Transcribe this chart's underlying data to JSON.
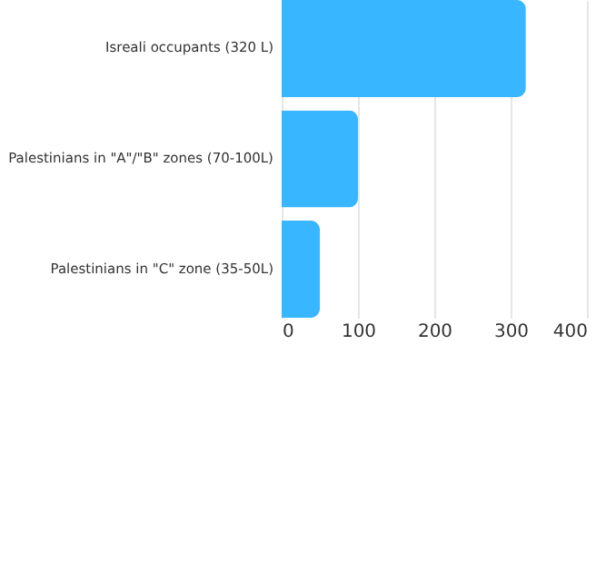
{
  "chart_data": {
    "type": "bar",
    "orientation": "horizontal",
    "categories": [
      "Isreali occupants (320 L)",
      "Palestinians in \"A\"/\"B\" zones (70-100L)",
      "Palestinians in \"C\" zone (35-50L)"
    ],
    "values": [
      320,
      100,
      50
    ],
    "color": "#38b6ff",
    "xlim": [
      0,
      400
    ],
    "xticks": [
      0,
      100,
      200,
      300,
      400
    ],
    "grid": "x"
  }
}
